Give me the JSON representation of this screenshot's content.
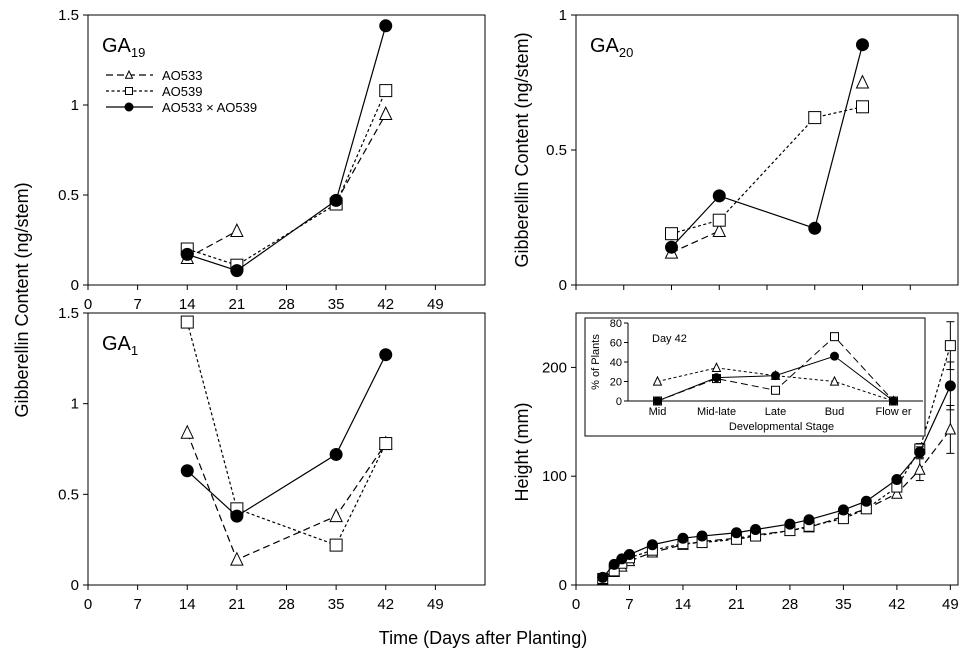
{
  "figure": {
    "xlabel": "Time (Days after Planting)",
    "ylabel_left": "Gibberellin Content  (ng/stem)",
    "ylabel_right_top": "Gibberellin Content  (ng/stem)",
    "ylabel_right_bottom": "Height (mm)"
  },
  "legend": {
    "items": [
      "AO533",
      "AO539",
      "AO533 × AO539"
    ]
  },
  "chart_data": [
    {
      "id": "ga19",
      "type": "line",
      "title_main": "GA",
      "title_sub": "19",
      "xlabel": "",
      "ylabel": "Gibberellin Content  (ng/stem)",
      "xlim": [
        0,
        56
      ],
      "ylim": [
        0,
        1.5
      ],
      "xticks": [
        "0",
        "7",
        "14",
        "21",
        "28",
        "35",
        "42",
        "49"
      ],
      "xtick_values": [
        0,
        7,
        14,
        21,
        28,
        35,
        42,
        49
      ],
      "yticks": [
        "0",
        "0.5",
        "1",
        "1.5"
      ],
      "ytick_values": [
        0,
        0.5,
        1,
        1.5
      ],
      "series": [
        {
          "name": "AO533",
          "marker": "triangle",
          "dash": "dashed",
          "x": [
            14,
            21
          ],
          "y": [
            0.15,
            0.3
          ],
          "x2": [
            35,
            42
          ],
          "y2": [
            0.46,
            0.95
          ]
        },
        {
          "name": "AO539",
          "marker": "square",
          "dash": "dotted",
          "x": [
            14,
            21,
            35,
            42
          ],
          "y": [
            0.2,
            0.11,
            0.45,
            1.08
          ]
        },
        {
          "name": "AO533 × AO539",
          "marker": "circle",
          "dash": "solid",
          "x": [
            14,
            21,
            35,
            42
          ],
          "y": [
            0.17,
            0.08,
            0.47,
            1.44
          ]
        }
      ]
    },
    {
      "id": "ga20",
      "type": "line",
      "title_main": "GA",
      "title_sub": "20",
      "xlabel": "",
      "ylabel": "Gibberellin Content  (ng/stem)",
      "xlim": [
        0,
        56
      ],
      "ylim": [
        0,
        1
      ],
      "xticks": [],
      "xtick_values": [
        0,
        7,
        14,
        21,
        28,
        35,
        42,
        49
      ],
      "yticks": [
        "0",
        "0.5",
        "1"
      ],
      "ytick_values": [
        0,
        0.5,
        1
      ],
      "series": [
        {
          "name": "AO533",
          "marker": "triangle",
          "dash": "dashed",
          "x": [
            14,
            21
          ],
          "y": [
            0.12,
            0.2
          ],
          "x2": [
            42
          ],
          "y2": [
            0.75
          ]
        },
        {
          "name": "AO539",
          "marker": "square",
          "dash": "dotted",
          "x": [
            14,
            21,
            35,
            42
          ],
          "y": [
            0.19,
            0.24,
            0.62,
            0.66
          ]
        },
        {
          "name": "AO533 × AO539",
          "marker": "circle",
          "dash": "solid",
          "x": [
            14,
            21,
            35,
            42
          ],
          "y": [
            0.14,
            0.33,
            0.21,
            0.89
          ]
        }
      ]
    },
    {
      "id": "ga1",
      "type": "line",
      "title_main": "GA",
      "title_sub": "1",
      "xlabel": "",
      "ylabel": "Gibberellin Content  (ng/stem)",
      "xlim": [
        0,
        56
      ],
      "ylim": [
        0,
        1.5
      ],
      "xticks": [
        "0",
        "7",
        "14",
        "21",
        "28",
        "35",
        "42",
        "49"
      ],
      "xtick_values": [
        0,
        7,
        14,
        21,
        28,
        35,
        42,
        49
      ],
      "yticks": [
        "0",
        "0.5",
        "1",
        "1.5"
      ],
      "ytick_values": [
        0,
        0.5,
        1,
        1.5
      ],
      "series": [
        {
          "name": "AO533",
          "marker": "triangle",
          "dash": "dashed",
          "x": [
            14,
            21,
            35,
            42
          ],
          "y": [
            0.84,
            0.14,
            0.38,
            0.78
          ]
        },
        {
          "name": "AO539",
          "marker": "square",
          "dash": "dotted",
          "x": [
            14,
            21,
            35,
            42
          ],
          "y": [
            1.45,
            0.42,
            0.22,
            0.78
          ]
        },
        {
          "name": "AO533 × AO539",
          "marker": "circle",
          "dash": "solid",
          "x": [
            14,
            21,
            35,
            42
          ],
          "y": [
            0.63,
            0.38,
            0.72,
            1.27
          ]
        }
      ]
    },
    {
      "id": "height",
      "type": "line",
      "title_main": "",
      "title_sub": "",
      "xlabel": "",
      "ylabel": "Height (mm)",
      "xlim": [
        0,
        50
      ],
      "ylim": [
        0,
        250
      ],
      "xticks": [
        "0",
        "7",
        "14",
        "21",
        "28",
        "35",
        "42",
        "49"
      ],
      "xtick_values": [
        0,
        7,
        14,
        21,
        28,
        35,
        42,
        49
      ],
      "yticks": [
        "0",
        "100",
        "200"
      ],
      "ytick_values": [
        0,
        100,
        200
      ],
      "series": [
        {
          "name": "AO533",
          "marker": "triangle",
          "dash": "dashed",
          "x": [
            3.5,
            5,
            6,
            7,
            10,
            14,
            16.5,
            21,
            23.5,
            28,
            30.5,
            35,
            38,
            42,
            45,
            49
          ],
          "y": [
            5,
            12,
            17,
            22,
            30,
            37,
            40,
            43,
            46,
            50,
            53,
            63,
            70,
            84,
            106,
            143
          ],
          "err": [
            0,
            0,
            0,
            0,
            0,
            0,
            0,
            0,
            0,
            0,
            0,
            0,
            0,
            0,
            10,
            22
          ]
        },
        {
          "name": "AO539",
          "marker": "square",
          "dash": "dotted",
          "x": [
            3.5,
            5,
            6,
            7,
            10,
            14,
            16.5,
            21,
            23.5,
            28,
            30.5,
            35,
            38,
            42,
            45,
            49
          ],
          "y": [
            6,
            13,
            20,
            25,
            32,
            38,
            39,
            42,
            45,
            50,
            54,
            61,
            70,
            90,
            125,
            220
          ],
          "err": [
            0,
            0,
            0,
            0,
            0,
            0,
            0,
            0,
            0,
            0,
            0,
            0,
            0,
            0,
            5,
            22
          ]
        },
        {
          "name": "AO533 × AO539",
          "marker": "circle",
          "dash": "solid",
          "x": [
            3.5,
            5,
            6,
            7,
            10,
            14,
            16.5,
            21,
            23.5,
            28,
            30.5,
            35,
            38,
            42,
            45,
            49
          ],
          "y": [
            7,
            19,
            24,
            28,
            37,
            43,
            45,
            48,
            51,
            56,
            60,
            69,
            77,
            97,
            122,
            183
          ],
          "err": [
            0,
            0,
            0,
            0,
            0,
            0,
            0,
            0,
            0,
            0,
            0,
            0,
            0,
            0,
            5,
            22
          ]
        }
      ],
      "inset": {
        "type": "line",
        "title": "Day 42",
        "xlabel": "Developmental Stage",
        "ylabel": "% of Plants",
        "categories": [
          "Mid",
          "Mid-late",
          "Late",
          "Bud",
          "Flow er"
        ],
        "ylim": [
          0,
          80
        ],
        "yticks": [
          "0",
          "20",
          "40",
          "60",
          "80"
        ],
        "ytick_values": [
          0,
          20,
          40,
          60,
          80
        ],
        "series": [
          {
            "name": "AO533",
            "marker": "triangle",
            "dash": "dotted",
            "values": [
              20,
              34,
              26,
              20,
              0
            ]
          },
          {
            "name": "AO539",
            "marker": "square",
            "dash": "dashed",
            "values": [
              0,
              23,
              11,
              66,
              0
            ]
          },
          {
            "name": "AO533 × AO539",
            "marker": "circle",
            "dash": "solid",
            "values": [
              0,
              24,
              26,
              46,
              0
            ]
          }
        ]
      }
    }
  ]
}
